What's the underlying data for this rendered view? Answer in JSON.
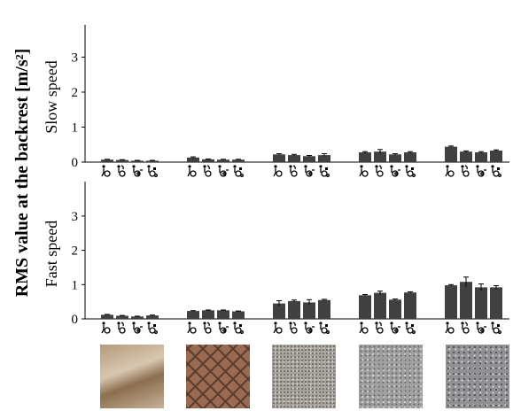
{
  "chart_data": {
    "type": "bar",
    "ylabel": "RMS value at the backrest [m/s²]",
    "ylim": [
      0,
      3.5
    ],
    "yticks": [
      "0",
      "1",
      "2",
      "3"
    ],
    "bar_color": "#404040",
    "groups": [
      "Surface 1",
      "Surface 2",
      "Surface 3",
      "Surface 4",
      "Surface 5"
    ],
    "wheelchair_icons": [
      "manual-wheelchair-icon",
      "pushrim-assist-wheelchair-icon",
      "power-add-on-wheelchair-icon",
      "power-wheelchair-icon"
    ],
    "panels": [
      {
        "label": "Slow speed",
        "values": [
          [
            0.07,
            0.06,
            0.04,
            0.04
          ],
          [
            0.13,
            0.08,
            0.07,
            0.07
          ],
          [
            0.22,
            0.2,
            0.17,
            0.2
          ],
          [
            0.28,
            0.3,
            0.22,
            0.28
          ],
          [
            0.44,
            0.3,
            0.28,
            0.33
          ]
        ],
        "errors": [
          [
            0.01,
            0.01,
            0.01,
            0.01
          ],
          [
            0.02,
            0.01,
            0.01,
            0.01
          ],
          [
            0.02,
            0.02,
            0.02,
            0.04
          ],
          [
            0.02,
            0.06,
            0.02,
            0.02
          ],
          [
            0.02,
            0.02,
            0.02,
            0.02
          ]
        ]
      },
      {
        "label": "Fast speed",
        "values": [
          [
            0.12,
            0.09,
            0.07,
            0.1
          ],
          [
            0.23,
            0.25,
            0.25,
            0.22
          ],
          [
            0.45,
            0.52,
            0.48,
            0.55
          ],
          [
            0.69,
            0.76,
            0.56,
            0.77
          ],
          [
            0.98,
            1.08,
            0.92,
            0.92
          ]
        ],
        "errors": [
          [
            0.01,
            0.01,
            0.01,
            0.01
          ],
          [
            0.01,
            0.01,
            0.01,
            0.01
          ],
          [
            0.08,
            0.03,
            0.08,
            0.02
          ],
          [
            0.02,
            0.05,
            0.02,
            0.02
          ],
          [
            0.02,
            0.14,
            0.1,
            0.05
          ]
        ]
      }
    ]
  },
  "surfaces": [
    {
      "texture": "smooth-tile-photo",
      "base": "#b59a7a",
      "accent": "#8d6e4f"
    },
    {
      "texture": "brick-paving-photo",
      "base": "#9a6b52",
      "accent": "#5d3d30"
    },
    {
      "texture": "fine-asphalt-photo",
      "base": "#a7a29c",
      "accent": "#6d6965"
    },
    {
      "texture": "coarse-asphalt-photo",
      "base": "#9fa0a0",
      "accent": "#666768"
    },
    {
      "texture": "rough-gravel-photo",
      "base": "#8f9194",
      "accent": "#4d4f52"
    }
  ]
}
